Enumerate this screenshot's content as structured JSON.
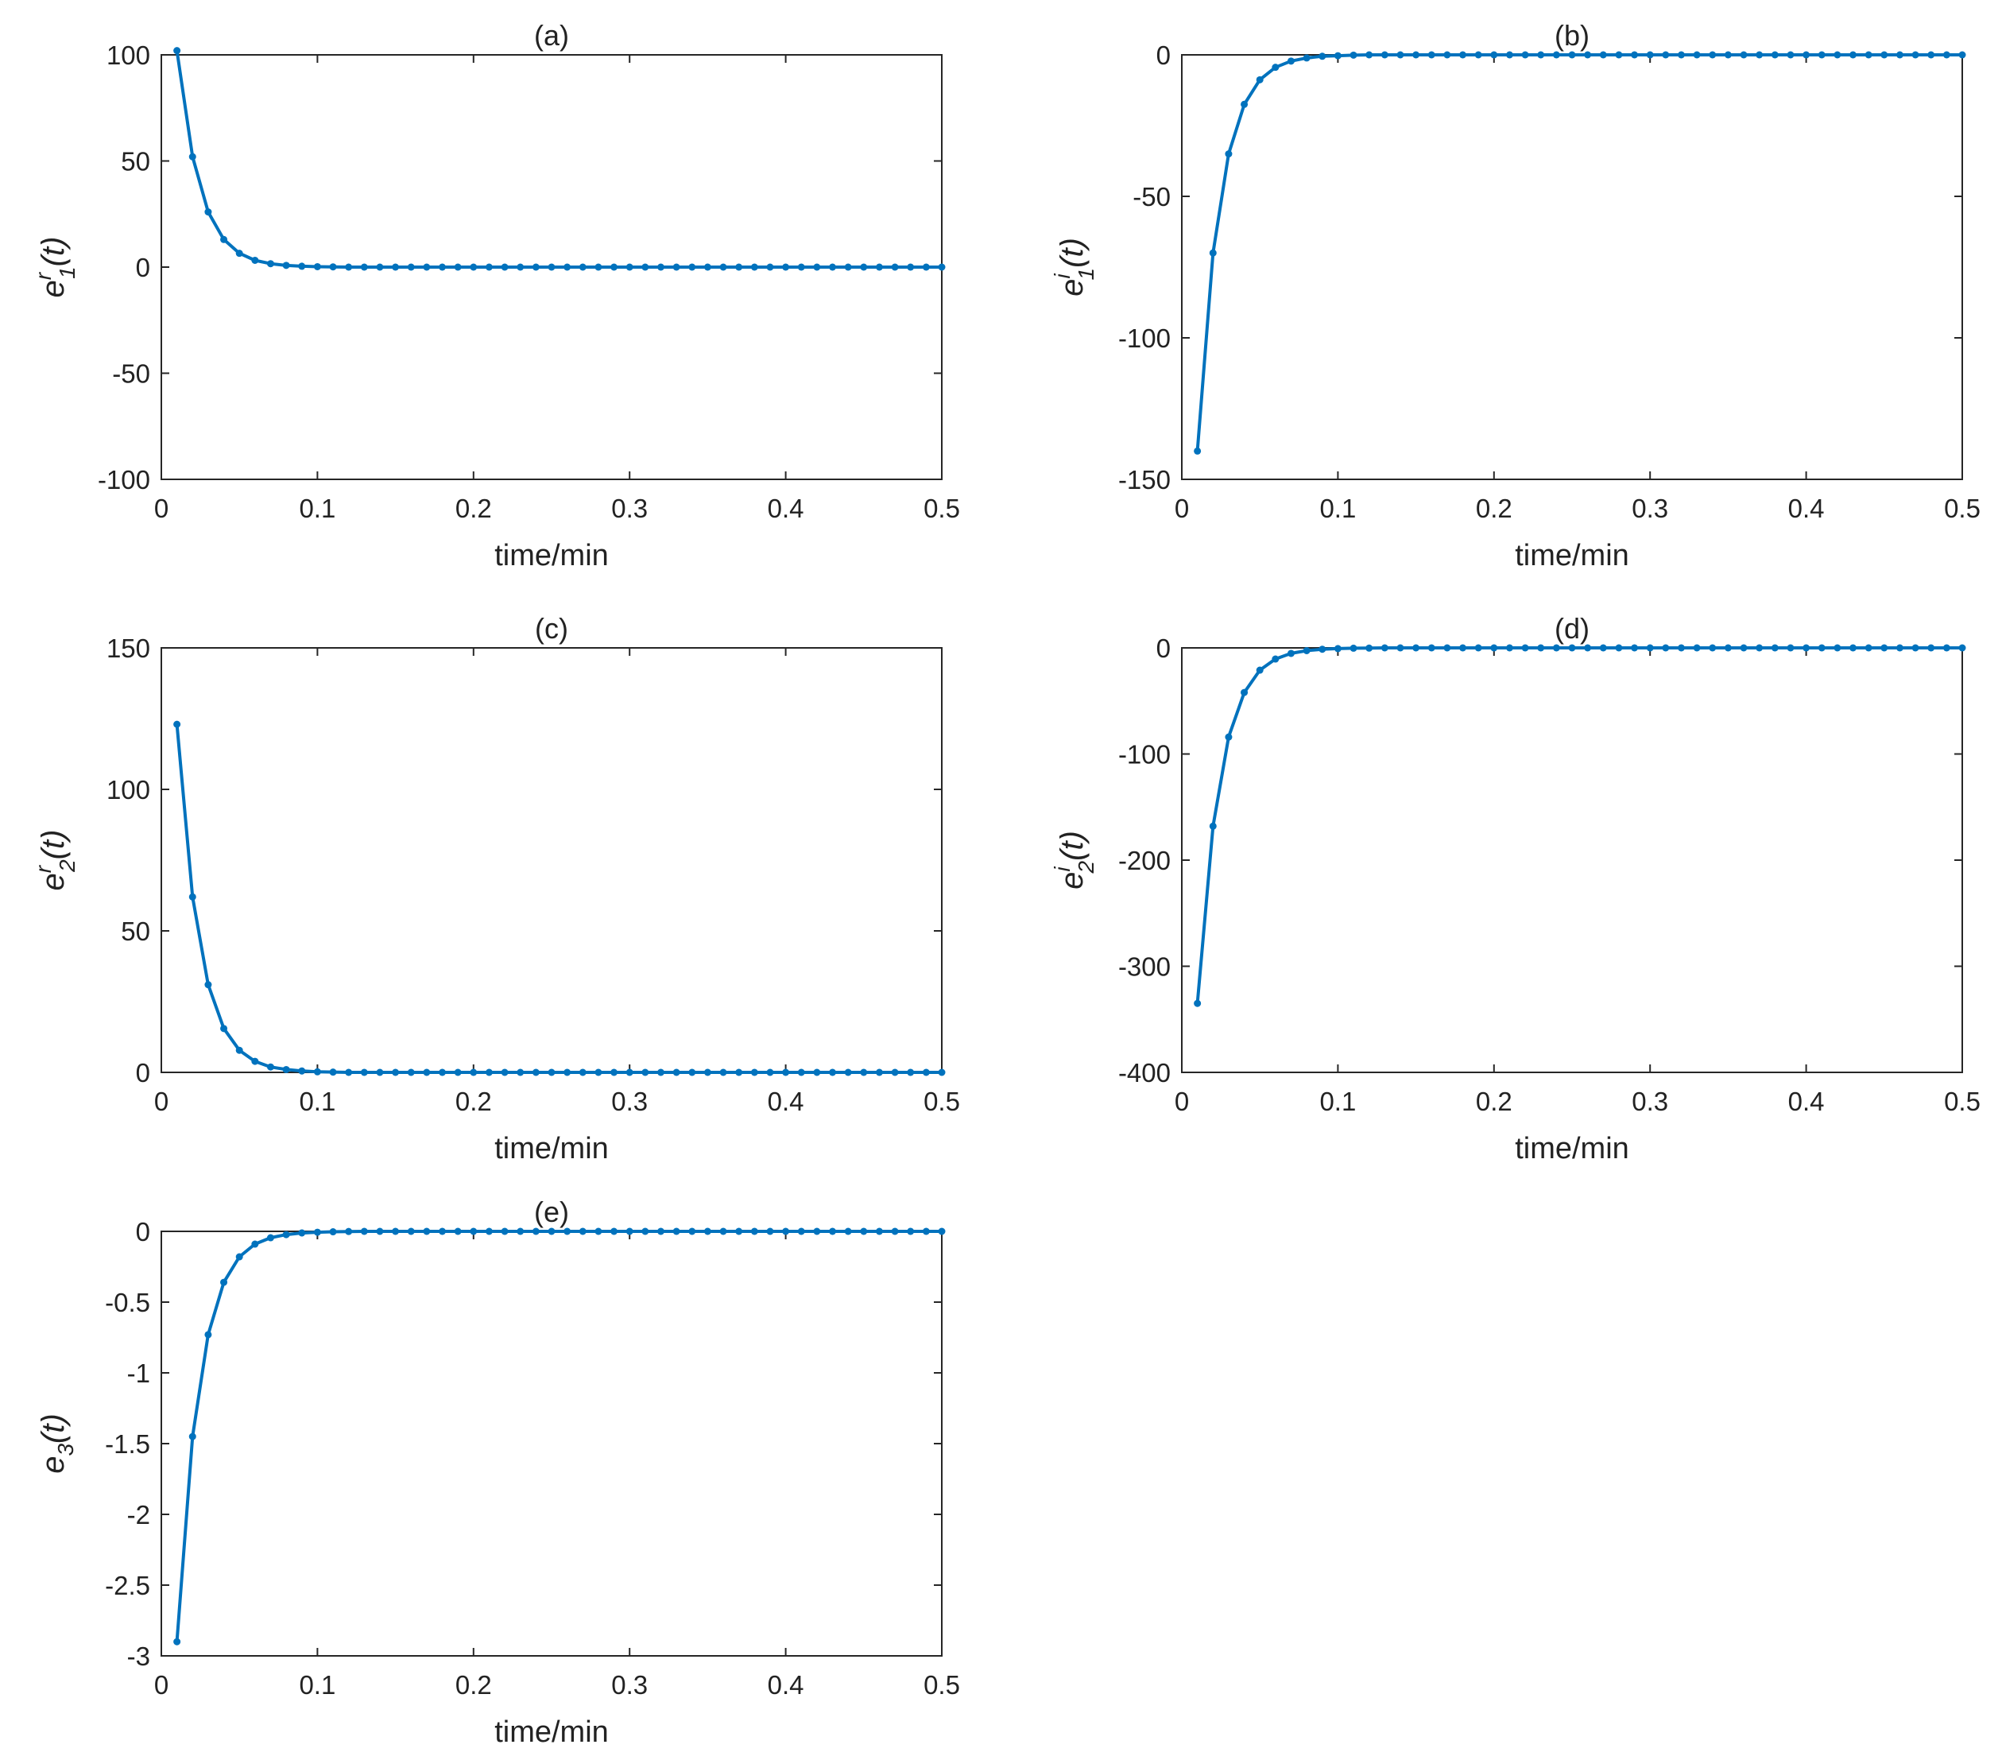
{
  "chart_data": [
    {
      "type": "line",
      "title": "(a)",
      "xlabel": "time/min",
      "ylabel": {
        "symbol": "e",
        "sup": "r",
        "sub": "1",
        "arg": "(t)"
      },
      "xlim": [
        0,
        0.5
      ],
      "ylim": [
        -100,
        100
      ],
      "xticks": [
        "0",
        "0.1",
        "0.2",
        "0.3",
        "0.4",
        "0.5"
      ],
      "yticks": [
        "-100",
        "-50",
        "0",
        "50",
        "100"
      ],
      "grid": false,
      "series": [
        {
          "color": "#0072BD",
          "x": [
            0.01,
            0.02,
            0.03,
            0.04,
            0.05,
            0.06,
            0.07,
            0.08,
            0.09,
            0.1,
            0.11,
            0.12,
            0.13,
            0.14,
            0.15,
            0.16,
            0.17,
            0.18,
            0.19,
            0.2,
            0.21,
            0.22,
            0.23,
            0.24,
            0.25,
            0.26,
            0.27,
            0.28,
            0.29,
            0.3,
            0.31,
            0.32,
            0.33,
            0.34,
            0.35,
            0.36,
            0.37,
            0.38,
            0.39,
            0.4,
            0.41,
            0.42,
            0.43,
            0.44,
            0.45,
            0.46,
            0.47,
            0.48,
            0.49,
            0.5
          ],
          "y": [
            102,
            52,
            26,
            13,
            6.5,
            3.2,
            1.6,
            0.8,
            0.4,
            0.2,
            0.1,
            0,
            0,
            0,
            0,
            0,
            0,
            0,
            0,
            0,
            0,
            0,
            0,
            0,
            0,
            0,
            0,
            0,
            0,
            0,
            0,
            0,
            0,
            0,
            0,
            0,
            0,
            0,
            0,
            0,
            0,
            0,
            0,
            0,
            0,
            0,
            0,
            0,
            0,
            0
          ]
        }
      ]
    },
    {
      "type": "line",
      "title": "(b)",
      "xlabel": "time/min",
      "ylabel": {
        "symbol": "e",
        "sup": "i",
        "sub": "1",
        "arg": "(t)"
      },
      "xlim": [
        0,
        0.5
      ],
      "ylim": [
        -150,
        0
      ],
      "xticks": [
        "0",
        "0.1",
        "0.2",
        "0.3",
        "0.4",
        "0.5"
      ],
      "yticks": [
        "-150",
        "-100",
        "-50",
        "0"
      ],
      "grid": false,
      "series": [
        {
          "color": "#0072BD",
          "x": [
            0.01,
            0.02,
            0.03,
            0.04,
            0.05,
            0.06,
            0.07,
            0.08,
            0.09,
            0.1,
            0.11,
            0.12,
            0.13,
            0.14,
            0.15,
            0.16,
            0.17,
            0.18,
            0.19,
            0.2,
            0.21,
            0.22,
            0.23,
            0.24,
            0.25,
            0.26,
            0.27,
            0.28,
            0.29,
            0.3,
            0.31,
            0.32,
            0.33,
            0.34,
            0.35,
            0.36,
            0.37,
            0.38,
            0.39,
            0.4,
            0.41,
            0.42,
            0.43,
            0.44,
            0.45,
            0.46,
            0.47,
            0.48,
            0.49,
            0.5
          ],
          "y": [
            -140,
            -70,
            -35,
            -17.5,
            -8.8,
            -4.4,
            -2.2,
            -1.1,
            -0.5,
            -0.3,
            -0.1,
            0,
            0,
            0,
            0,
            0,
            0,
            0,
            0,
            0,
            0,
            0,
            0,
            0,
            0,
            0,
            0,
            0,
            0,
            0,
            0,
            0,
            0,
            0,
            0,
            0,
            0,
            0,
            0,
            0,
            0,
            0,
            0,
            0,
            0,
            0,
            0,
            0,
            0,
            0
          ]
        }
      ]
    },
    {
      "type": "line",
      "title": "(c)",
      "xlabel": "time/min",
      "ylabel": {
        "symbol": "e",
        "sup": "r",
        "sub": "2",
        "arg": "(t)"
      },
      "xlim": [
        0,
        0.5
      ],
      "ylim": [
        0,
        150
      ],
      "xticks": [
        "0",
        "0.1",
        "0.2",
        "0.3",
        "0.4",
        "0.5"
      ],
      "yticks": [
        "0",
        "50",
        "100",
        "150"
      ],
      "grid": false,
      "series": [
        {
          "color": "#0072BD",
          "x": [
            0.01,
            0.02,
            0.03,
            0.04,
            0.05,
            0.06,
            0.07,
            0.08,
            0.09,
            0.1,
            0.11,
            0.12,
            0.13,
            0.14,
            0.15,
            0.16,
            0.17,
            0.18,
            0.19,
            0.2,
            0.21,
            0.22,
            0.23,
            0.24,
            0.25,
            0.26,
            0.27,
            0.28,
            0.29,
            0.3,
            0.31,
            0.32,
            0.33,
            0.34,
            0.35,
            0.36,
            0.37,
            0.38,
            0.39,
            0.4,
            0.41,
            0.42,
            0.43,
            0.44,
            0.45,
            0.46,
            0.47,
            0.48,
            0.49,
            0.5
          ],
          "y": [
            123,
            62,
            31,
            15.5,
            7.8,
            3.9,
            1.9,
            1.0,
            0.5,
            0.2,
            0.1,
            0,
            0,
            0,
            0,
            0,
            0,
            0,
            0,
            0,
            0,
            0,
            0,
            0,
            0,
            0,
            0,
            0,
            0,
            0,
            0,
            0,
            0,
            0,
            0,
            0,
            0,
            0,
            0,
            0,
            0,
            0,
            0,
            0,
            0,
            0,
            0,
            0,
            0,
            0
          ]
        }
      ]
    },
    {
      "type": "line",
      "title": "(d)",
      "xlabel": "time/min",
      "ylabel": {
        "symbol": "e",
        "sup": "i",
        "sub": "2",
        "arg": "(t)"
      },
      "xlim": [
        0,
        0.5
      ],
      "ylim": [
        -400,
        0
      ],
      "xticks": [
        "0",
        "0.1",
        "0.2",
        "0.3",
        "0.4",
        "0.5"
      ],
      "yticks": [
        "-400",
        "-300",
        "-200",
        "-100",
        "0"
      ],
      "grid": false,
      "series": [
        {
          "color": "#0072BD",
          "x": [
            0.01,
            0.02,
            0.03,
            0.04,
            0.05,
            0.06,
            0.07,
            0.08,
            0.09,
            0.1,
            0.11,
            0.12,
            0.13,
            0.14,
            0.15,
            0.16,
            0.17,
            0.18,
            0.19,
            0.2,
            0.21,
            0.22,
            0.23,
            0.24,
            0.25,
            0.26,
            0.27,
            0.28,
            0.29,
            0.3,
            0.31,
            0.32,
            0.33,
            0.34,
            0.35,
            0.36,
            0.37,
            0.38,
            0.39,
            0.4,
            0.41,
            0.42,
            0.43,
            0.44,
            0.45,
            0.46,
            0.47,
            0.48,
            0.49,
            0.5
          ],
          "y": [
            -335,
            -168,
            -84,
            -42,
            -21,
            -10.5,
            -5.2,
            -2.6,
            -1.3,
            -0.7,
            -0.3,
            -0.2,
            0,
            0,
            0,
            0,
            0,
            0,
            0,
            0,
            0,
            0,
            0,
            0,
            0,
            0,
            0,
            0,
            0,
            0,
            0,
            0,
            0,
            0,
            0,
            0,
            0,
            0,
            0,
            0,
            0,
            0,
            0,
            0,
            0,
            0,
            0,
            0,
            0,
            0
          ]
        }
      ]
    },
    {
      "type": "line",
      "title": "(e)",
      "xlabel": "time/min",
      "ylabel": {
        "symbol": "e",
        "sup": "",
        "sub": "3",
        "arg": "(t)"
      },
      "xlim": [
        0,
        0.5
      ],
      "ylim": [
        -3,
        0
      ],
      "xticks": [
        "0",
        "0.1",
        "0.2",
        "0.3",
        "0.4",
        "0.5"
      ],
      "yticks": [
        "-3",
        "-2.5",
        "-2",
        "-1.5",
        "-1",
        "-0.5",
        "0"
      ],
      "grid": false,
      "series": [
        {
          "color": "#0072BD",
          "x": [
            0.01,
            0.02,
            0.03,
            0.04,
            0.05,
            0.06,
            0.07,
            0.08,
            0.09,
            0.1,
            0.11,
            0.12,
            0.13,
            0.14,
            0.15,
            0.16,
            0.17,
            0.18,
            0.19,
            0.2,
            0.21,
            0.22,
            0.23,
            0.24,
            0.25,
            0.26,
            0.27,
            0.28,
            0.29,
            0.3,
            0.31,
            0.32,
            0.33,
            0.34,
            0.35,
            0.36,
            0.37,
            0.38,
            0.39,
            0.4,
            0.41,
            0.42,
            0.43,
            0.44,
            0.45,
            0.46,
            0.47,
            0.48,
            0.49,
            0.5
          ],
          "y": [
            -2.9,
            -1.45,
            -0.73,
            -0.36,
            -0.18,
            -0.09,
            -0.045,
            -0.023,
            -0.011,
            -0.006,
            -0.003,
            -0.001,
            0,
            0,
            0,
            0,
            0,
            0,
            0,
            0,
            0,
            0,
            0,
            0,
            0,
            0,
            0,
            0,
            0,
            0,
            0,
            0,
            0,
            0,
            0,
            0,
            0,
            0,
            0,
            0,
            0,
            0,
            0,
            0,
            0,
            0,
            0,
            0,
            0,
            0
          ]
        }
      ]
    }
  ]
}
